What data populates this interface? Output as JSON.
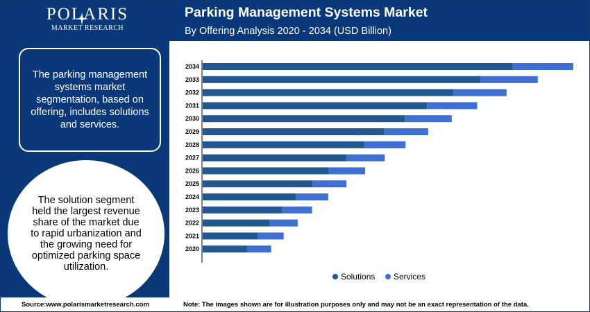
{
  "brand": {
    "name": "POLARIS",
    "subtitle": "MARKET RESEARCH"
  },
  "header": {
    "title": "Parking Management Systems Market",
    "subtitle": "By Offering Analysis 2020 - 2034 (USD Billion)"
  },
  "sidebar": {
    "info_text": "The parking management systems market segmentation, based on offering, includes solutions and services.",
    "highlight_text": "The solution segment held the largest revenue share of the market due to rapid urbanization and the growing need for optimized parking space utilization."
  },
  "footer": {
    "source": "Source:www.polarismarketresearch.com",
    "note": "Note: The images shown are for illustration purposes only and may not be an exact representation of the data."
  },
  "colors": {
    "navy": "#0a3878",
    "solutions": "#23578f",
    "services": "#3f6fd0"
  },
  "chart_data": {
    "type": "bar",
    "orientation": "horizontal",
    "stacked": true,
    "categories": [
      "2034",
      "2033",
      "2032",
      "2031",
      "2030",
      "2029",
      "2028",
      "2027",
      "2026",
      "2025",
      "2024",
      "2023",
      "2022",
      "2021",
      "2020"
    ],
    "series": [
      {
        "name": "Solutions",
        "color": "#23578f",
        "values": [
          8.65,
          7.76,
          6.99,
          6.26,
          5.64,
          5.06,
          4.51,
          4.0,
          3.52,
          3.06,
          2.61,
          2.22,
          1.87,
          1.53,
          1.23
        ]
      },
      {
        "name": "Services",
        "color": "#3f6fd0",
        "values": [
          1.69,
          1.59,
          1.49,
          1.4,
          1.31,
          1.23,
          1.15,
          1.08,
          1.01,
          0.95,
          0.89,
          0.83,
          0.78,
          0.73,
          0.68
        ]
      }
    ],
    "xlim": [
      0,
      10.4
    ],
    "grid": false,
    "legend_position": "bottom"
  }
}
